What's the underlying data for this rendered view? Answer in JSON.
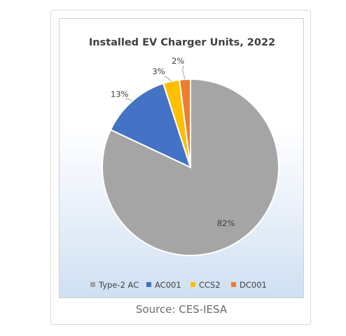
{
  "chart_data": {
    "type": "pie",
    "title": "Installed EV Charger Units, 2022",
    "categories": [
      "Type-2 AC",
      "AC001",
      "CCS2",
      "DC001"
    ],
    "values": [
      82,
      13,
      3,
      2
    ],
    "labels": [
      "82%",
      "13%",
      "3%",
      "2%"
    ],
    "colors": [
      "#a5a5a5",
      "#4472c4",
      "#ffc000",
      "#ed7d31"
    ],
    "legend": "bottom"
  },
  "footer": {
    "source": "Source: CES-IESA"
  }
}
